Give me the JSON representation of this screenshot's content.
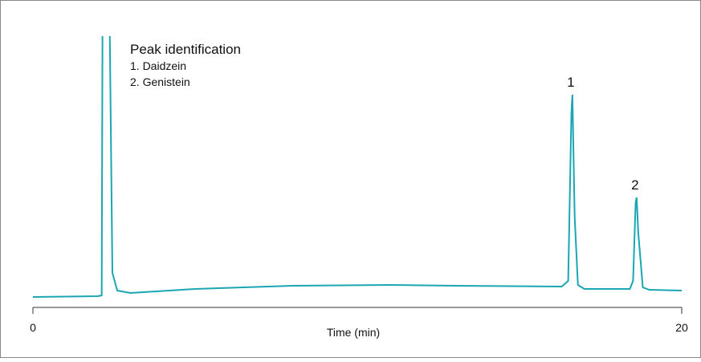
{
  "chart_data": {
    "type": "line",
    "legend_title": "Peak identification",
    "legend_items": [
      "1. Daidzein",
      "2. Genistein"
    ],
    "x_label": "Time (min)",
    "xlim": [
      0,
      20
    ],
    "xticks": [
      0,
      20
    ],
    "ylim": [
      0,
      325
    ],
    "series": [
      {
        "color": "#1ba6b3",
        "x": [
          0,
          1,
          2,
          2.12,
          2.15,
          2.35,
          2.45,
          2.6,
          3,
          5,
          8,
          11,
          13,
          16.3,
          16.5,
          16.6,
          16.63,
          16.7,
          16.8,
          17,
          18.4,
          18.5,
          18.58,
          18.61,
          18.66,
          18.8,
          19,
          20
        ],
        "values": [
          0,
          0.5,
          1,
          2,
          400,
          400,
          30,
          8,
          5,
          10,
          14,
          15,
          14,
          13,
          20,
          230,
          252,
          100,
          15,
          10,
          10,
          20,
          118,
          124,
          80,
          12,
          9,
          8
        ]
      }
    ],
    "peak_labels": [
      {
        "label": "1",
        "x": 16.63,
        "y": 252
      },
      {
        "label": "2",
        "x": 18.61,
        "y": 124
      }
    ]
  }
}
